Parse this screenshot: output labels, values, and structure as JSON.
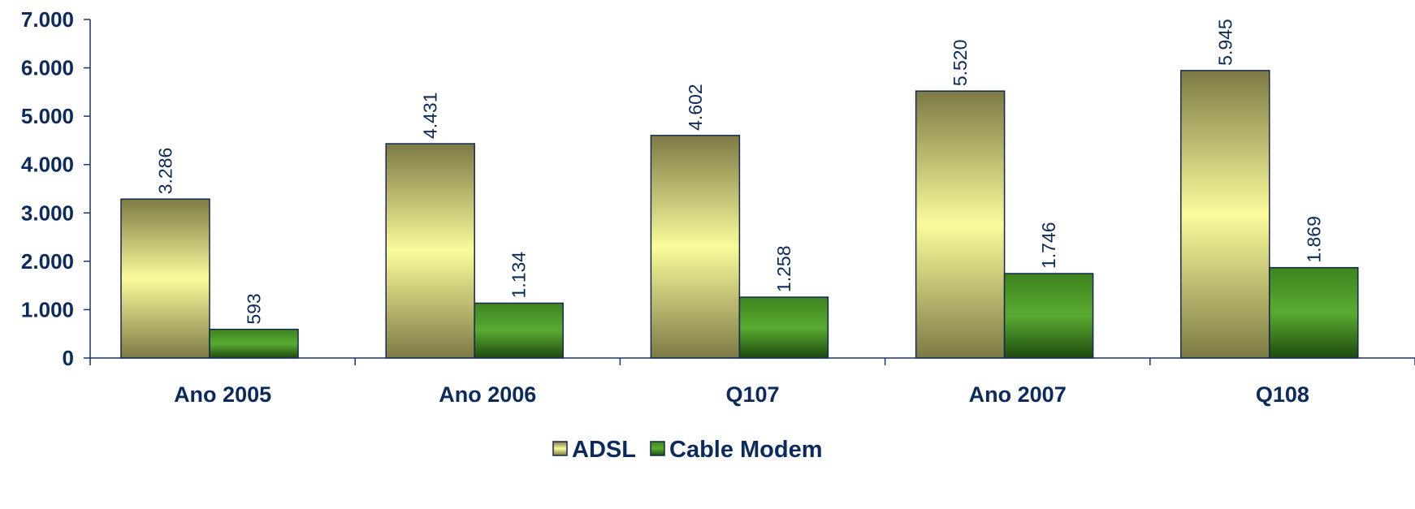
{
  "chart_data": {
    "type": "bar",
    "categories": [
      "Ano 2005",
      "Ano 2006",
      "Q107",
      "Ano 2007",
      "Q108"
    ],
    "series": [
      {
        "name": "ADSL",
        "values": [
          3286,
          4431,
          4602,
          5520,
          5945
        ],
        "labels": [
          "3.286",
          "4.431",
          "4.602",
          "5.520",
          "5.945"
        ],
        "color": "#e6e47a"
      },
      {
        "name": "Cable Modem",
        "values": [
          593,
          1134,
          1258,
          1746,
          1869
        ],
        "labels": [
          "593",
          "1.134",
          "1.258",
          "1.746",
          "1.869"
        ],
        "color": "#3c8a1f"
      }
    ],
    "yticks": [
      0,
      1000,
      2000,
      3000,
      4000,
      5000,
      6000,
      7000
    ],
    "ytick_labels": [
      "0",
      "1.000",
      "2.000",
      "3.000",
      "4.000",
      "5.000",
      "6.000",
      "7.000"
    ],
    "ylim": [
      0,
      7000
    ],
    "title": "",
    "xlabel": "",
    "ylabel": "",
    "legend_position": "bottom-center",
    "grid": false
  }
}
